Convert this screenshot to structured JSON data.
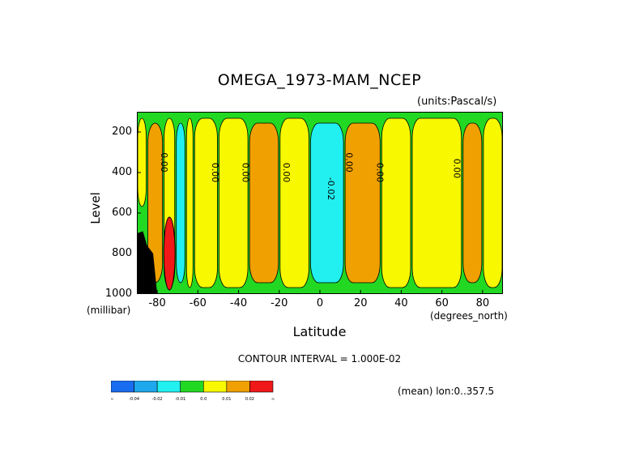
{
  "chart_data": {
    "type": "heatmap",
    "title": "OMEGA_1973-MAM_NCEP",
    "units": "(units:Pascal/s)",
    "xlabel": "Latitude",
    "x_unit": "(degrees_north)",
    "ylabel": "Level",
    "y_unit": "(millibar)",
    "xlim": [
      -90,
      90
    ],
    "ylim": [
      1000,
      100
    ],
    "x_ticks": [
      "-80",
      "-60",
      "-40",
      "-20",
      "0",
      "20",
      "40",
      "60",
      "80"
    ],
    "x_tick_values": [
      -80,
      -60,
      -40,
      -20,
      0,
      20,
      40,
      60,
      80
    ],
    "y_ticks": [
      "200",
      "400",
      "600",
      "800",
      "1000"
    ],
    "y_tick_values": [
      200,
      400,
      600,
      800,
      1000
    ],
    "contour_interval_text": "CONTOUR INTERVAL = 1.000E-02",
    "mean_text": "(mean) lon:0..357.5",
    "contour_labels": [
      "0.00",
      "0.00",
      "0.00",
      "0.00",
      "-0.02",
      "0.00",
      "0.00",
      "0.00"
    ],
    "colorbar": {
      "labels": [
        "-∞",
        "-0.04",
        "-0.02",
        "-0.01",
        "0.0",
        "0.01",
        "0.02",
        "∞"
      ],
      "colors": [
        "#1a6cf0",
        "#1ea8ee",
        "#22f0f0",
        "#22d822",
        "#f8f800",
        "#f0a000",
        "#f01818"
      ]
    },
    "bands": [
      {
        "x0": -90,
        "x1": -85,
        "y0": 100,
        "y1": 600,
        "level": "0.0"
      },
      {
        "x0": -85,
        "x1": -77,
        "y0": 100,
        "y1": 1000,
        "level": "0.01"
      },
      {
        "x0": -77,
        "x1": -71,
        "y0": 100,
        "y1": 1000,
        "level": "0.0"
      },
      {
        "x0": -71,
        "x1": -66,
        "y0": 100,
        "y1": 1000,
        "level": "-0.01"
      },
      {
        "x0": -66,
        "x1": -62,
        "y0": 100,
        "y1": 1000,
        "level": "0.0"
      },
      {
        "x0": -62,
        "x1": -50,
        "y0": 100,
        "y1": 1000,
        "level": "0.0"
      },
      {
        "x0": -50,
        "x1": -35,
        "y0": 100,
        "y1": 1000,
        "level": "0.0"
      },
      {
        "x0": -35,
        "x1": -20,
        "y0": 100,
        "y1": 1000,
        "level": "0.01"
      },
      {
        "x0": -20,
        "x1": -5,
        "y0": 100,
        "y1": 1000,
        "level": "0.0"
      },
      {
        "x0": -5,
        "x1": 12,
        "y0": 100,
        "y1": 1000,
        "level": "-0.01"
      },
      {
        "x0": 12,
        "x1": 30,
        "y0": 100,
        "y1": 1000,
        "level": "0.01"
      },
      {
        "x0": 30,
        "x1": 45,
        "y0": 100,
        "y1": 1000,
        "level": "0.0"
      },
      {
        "x0": 45,
        "x1": 70,
        "y0": 100,
        "y1": 1000,
        "level": "0.0"
      },
      {
        "x0": 70,
        "x1": 80,
        "y0": 100,
        "y1": 1000,
        "level": "0.01"
      },
      {
        "x0": 80,
        "x1": 90,
        "y0": 100,
        "y1": 1000,
        "level": "0.0"
      }
    ]
  }
}
